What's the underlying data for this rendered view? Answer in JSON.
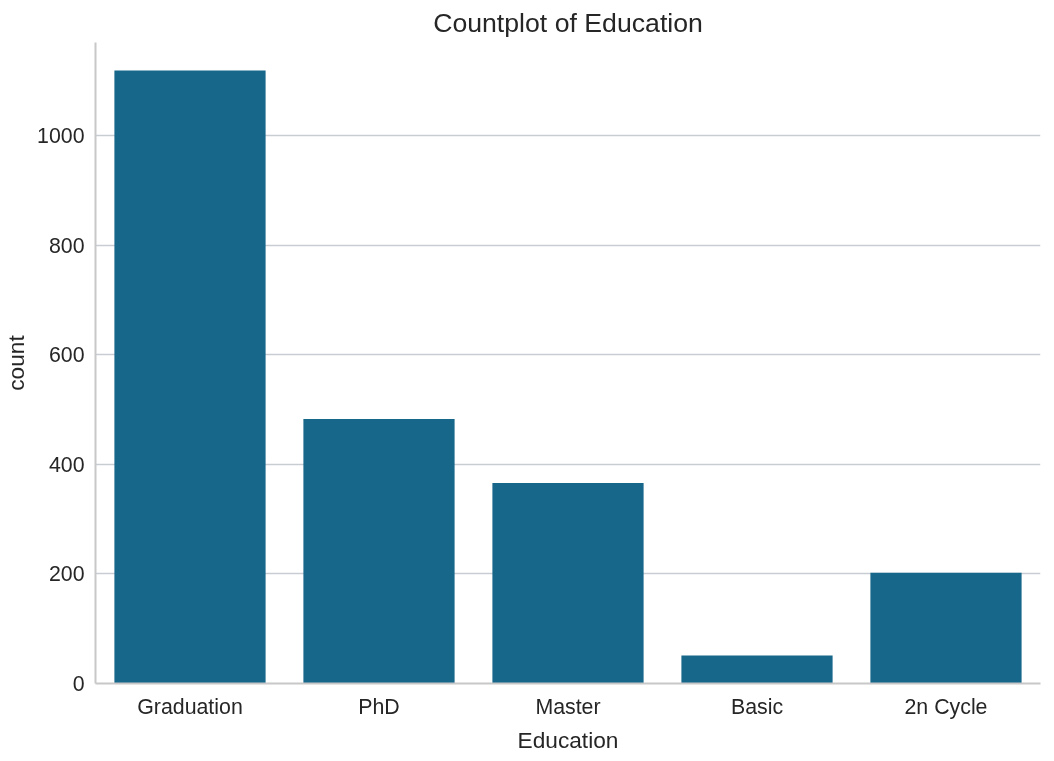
{
  "chart_data": {
    "type": "bar",
    "title": "Countplot of Education",
    "xlabel": "Education",
    "ylabel": "count",
    "categories": [
      "Graduation",
      "PhD",
      "Master",
      "Basic",
      "2n Cycle"
    ],
    "values": [
      1119,
      483,
      366,
      51,
      202
    ],
    "color": "#17678b",
    "ylim": [
      0,
      1170
    ],
    "yticks": [
      0,
      200,
      400,
      600,
      800,
      1000
    ],
    "grid": "y"
  }
}
